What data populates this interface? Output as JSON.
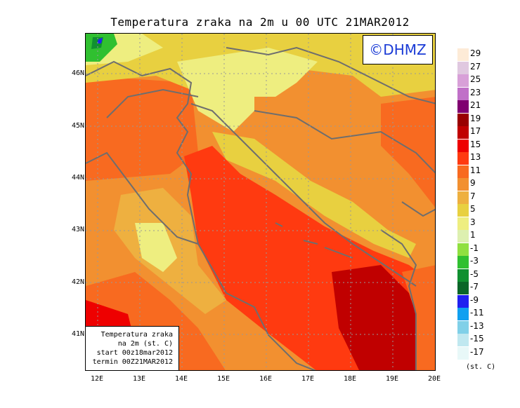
{
  "title": "Temperatura zraka na 2m u 00 UTC 21MAR2012",
  "brand": "©DHMZ",
  "info": {
    "line1": "Temperatura zraka",
    "line2": "na 2m (st. C)",
    "line3": "start 00z18mar2012",
    "line4": "termin 00Z21MAR2012"
  },
  "lat_labels": [
    "46N",
    "45N",
    "44N",
    "43N",
    "42N",
    "41N"
  ],
  "lon_labels": [
    "12E",
    "13E",
    "14E",
    "15E",
    "16E",
    "17E",
    "18E",
    "19E",
    "20E"
  ],
  "legend": {
    "units": "(st. C)",
    "labels": [
      "29",
      "27",
      "25",
      "23",
      "21",
      "19",
      "17",
      "15",
      "13",
      "11",
      "9",
      "7",
      "5",
      "3",
      "1",
      "-1",
      "-3",
      "-5",
      "-7",
      "-9",
      "-11",
      "-13",
      "-15",
      "-17"
    ],
    "colors": [
      "#fdebd7",
      "#e0c8e0",
      "#d8a0d8",
      "#c070c8",
      "#800070",
      "#990000",
      "#c00000",
      "#ee0000",
      "#ff3a10",
      "#f86a20",
      "#f29030",
      "#eeb040",
      "#e8d040",
      "#eeee80",
      "#ddf0b0",
      "#90e040",
      "#30c030",
      "#109030",
      "#0a6628",
      "#2020f0",
      "#10a0f0",
      "#80d0e8",
      "#c0e8f0",
      "#e8f8f8"
    ]
  },
  "colors": {
    "land_north": "#eeb040",
    "sea": "#ff3a10",
    "coastline": "#6e6e6e"
  }
}
